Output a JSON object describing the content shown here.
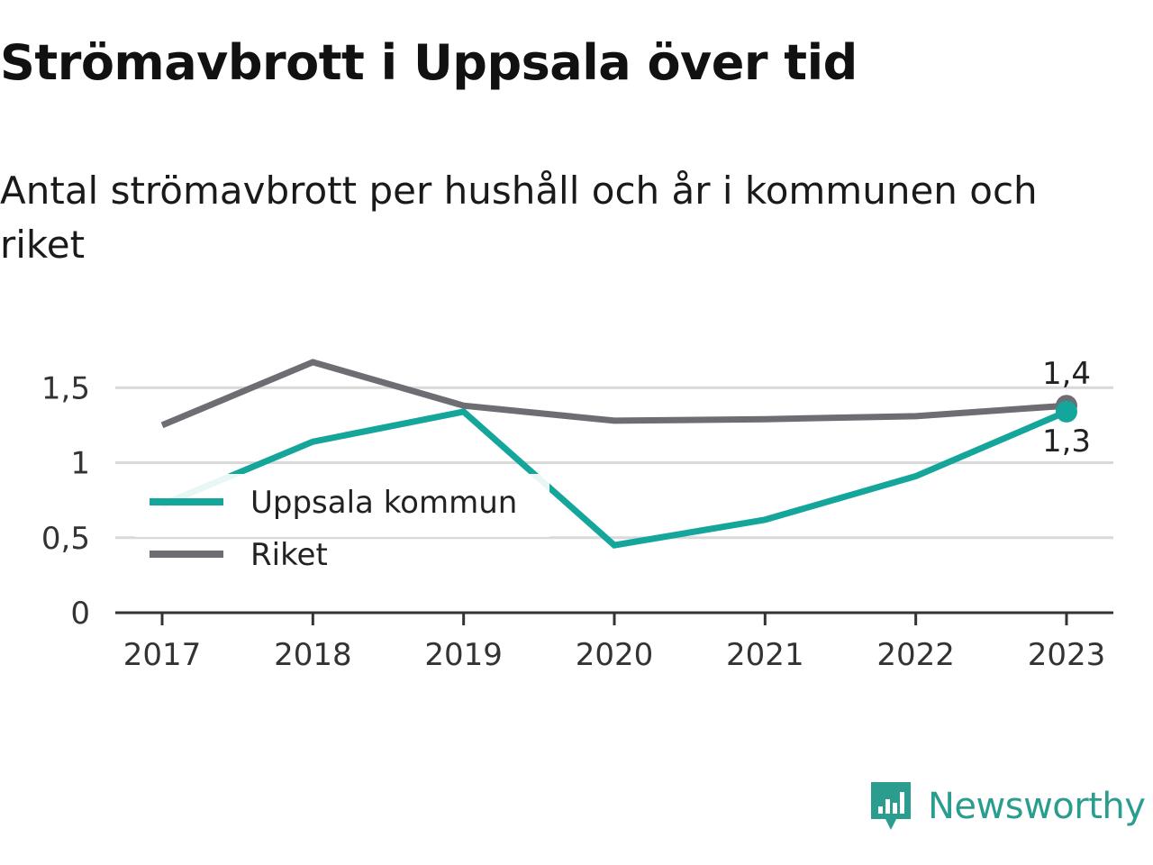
{
  "title": "Strömavbrott i Uppsala över tid",
  "subtitle": "Antal strömavbrott per hushåll och år i kommunen och riket",
  "brand": {
    "name": "Newsworthy",
    "icon": "newsworthy-logo-icon",
    "color": "#2a9d8f"
  },
  "chart_data": {
    "type": "line",
    "x": [
      "2017",
      "2018",
      "2019",
      "2020",
      "2021",
      "2022",
      "2023"
    ],
    "ylim": [
      0,
      1.7
    ],
    "y_ticks": [
      {
        "value": 0,
        "label": "0"
      },
      {
        "value": 0.5,
        "label": "0,5"
      },
      {
        "value": 1,
        "label": "1"
      },
      {
        "value": 1.5,
        "label": "1,5"
      }
    ],
    "grid": true,
    "legend_position": "left",
    "series": [
      {
        "name": "Uppsala kommun",
        "color": "#14a69a",
        "values": [
          0.72,
          1.14,
          1.34,
          0.45,
          0.62,
          0.91,
          1.34
        ],
        "end_label": "1,3"
      },
      {
        "name": "Riket",
        "color": "#6e6d73",
        "values": [
          1.25,
          1.67,
          1.38,
          1.28,
          1.29,
          1.31,
          1.38
        ],
        "end_label": "1,4"
      }
    ]
  }
}
